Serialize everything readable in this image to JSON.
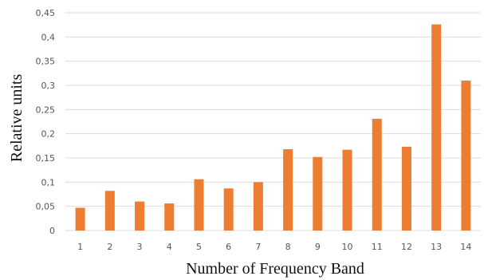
{
  "chart_data": {
    "type": "bar",
    "title": "",
    "xlabel": "Number of Frequency Band",
    "ylabel": "Relative units",
    "categories": [
      "1",
      "2",
      "3",
      "4",
      "5",
      "6",
      "7",
      "8",
      "9",
      "10",
      "11",
      "12",
      "13",
      "14"
    ],
    "values": [
      0.047,
      0.082,
      0.06,
      0.056,
      0.106,
      0.087,
      0.1,
      0.168,
      0.152,
      0.167,
      0.231,
      0.173,
      0.426,
      0.31
    ],
    "ylim": [
      0,
      0.45
    ],
    "yticks": [
      0,
      0.05,
      0.1,
      0.15,
      0.2,
      0.25,
      0.3,
      0.35,
      0.4,
      0.45
    ],
    "ytick_labels": [
      "0",
      "0,05",
      "0,1",
      "0,15",
      "0,2",
      "0,25",
      "0,3",
      "0,35",
      "0,4",
      "0,45"
    ],
    "grid": true,
    "bar_color": "#ED7D31"
  }
}
